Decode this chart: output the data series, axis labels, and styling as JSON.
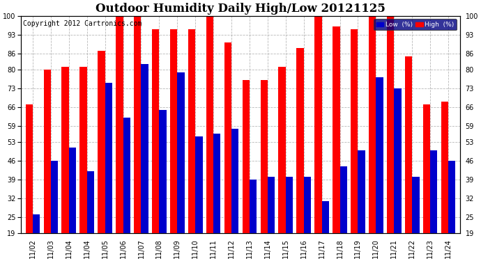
{
  "title": "Outdoor Humidity Daily High/Low 20121125",
  "copyright": "Copyright 2012 Cartronics.com",
  "legend_low": "Low  (%)",
  "legend_high": "High  (%)",
  "dates": [
    "11/02",
    "11/03",
    "11/04",
    "11/04",
    "11/05",
    "11/06",
    "11/07",
    "11/08",
    "11/09",
    "11/10",
    "11/11",
    "11/12",
    "11/13",
    "11/14",
    "11/15",
    "11/16",
    "11/17",
    "11/18",
    "11/19",
    "11/20",
    "11/21",
    "11/22",
    "11/23",
    "11/24"
  ],
  "high": [
    67,
    80,
    81,
    81,
    87,
    100,
    100,
    95,
    95,
    95,
    100,
    90,
    76,
    76,
    81,
    88,
    100,
    96,
    95,
    100,
    100,
    85,
    67,
    68
  ],
  "low": [
    26,
    46,
    51,
    42,
    75,
    62,
    82,
    65,
    79,
    55,
    56,
    58,
    39,
    40,
    40,
    40,
    31,
    44,
    50,
    77,
    73,
    40,
    50,
    46
  ],
  "ylim_min": 19,
  "ylim_max": 100,
  "yticks": [
    19,
    25,
    32,
    39,
    46,
    53,
    59,
    66,
    73,
    80,
    86,
    93,
    100
  ],
  "bar_width": 0.4,
  "low_color": "#0000cc",
  "high_color": "#ff0000",
  "bg_color": "#ffffff",
  "grid_color": "#999999",
  "title_fontsize": 12,
  "tick_fontsize": 7,
  "copyright_fontsize": 7
}
